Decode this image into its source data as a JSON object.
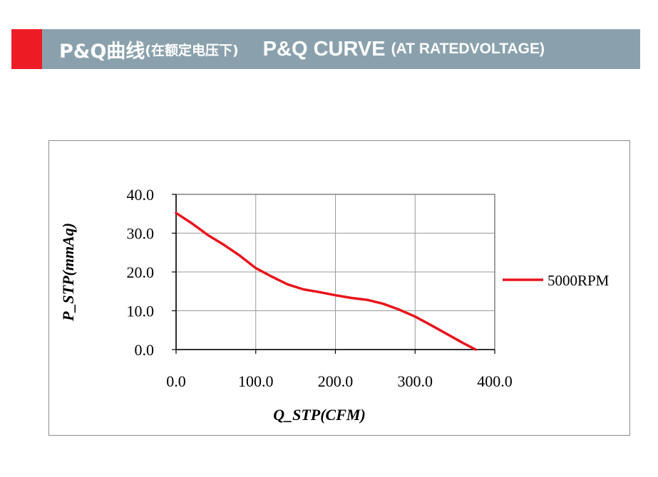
{
  "header": {
    "title_cn": "P&Q曲线",
    "title_cn_sub": "(在额定电压下)",
    "title_en": "P&Q CURVE",
    "title_en_sub": "(AT RATEDVOLTAGE)",
    "accent_color": "#ed1c24",
    "bar_color": "#8aa1ad"
  },
  "chart_data": {
    "type": "line",
    "xlabel": "Q_STP(CFM)",
    "ylabel": "P_STP(mmAq)",
    "xlim": [
      0,
      400
    ],
    "ylim": [
      0,
      40
    ],
    "x_ticks": [
      "0.0",
      "100.0",
      "200.0",
      "300.0",
      "400.0"
    ],
    "y_ticks": [
      "0.0",
      "10.0",
      "20.0",
      "30.0",
      "40.0"
    ],
    "grid": true,
    "legend_position": "right",
    "series": [
      {
        "name": "5000RPM",
        "color": "#e8141c",
        "x": [
          0,
          20,
          40,
          60,
          80,
          100,
          120,
          140,
          160,
          180,
          200,
          220,
          240,
          260,
          280,
          300,
          320,
          340,
          360,
          376
        ],
        "y": [
          35.2,
          32.5,
          29.5,
          27.0,
          24.2,
          21.0,
          18.8,
          16.8,
          15.5,
          14.8,
          14.0,
          13.3,
          12.8,
          11.8,
          10.3,
          8.5,
          6.3,
          4.0,
          1.7,
          0.0
        ]
      }
    ]
  }
}
